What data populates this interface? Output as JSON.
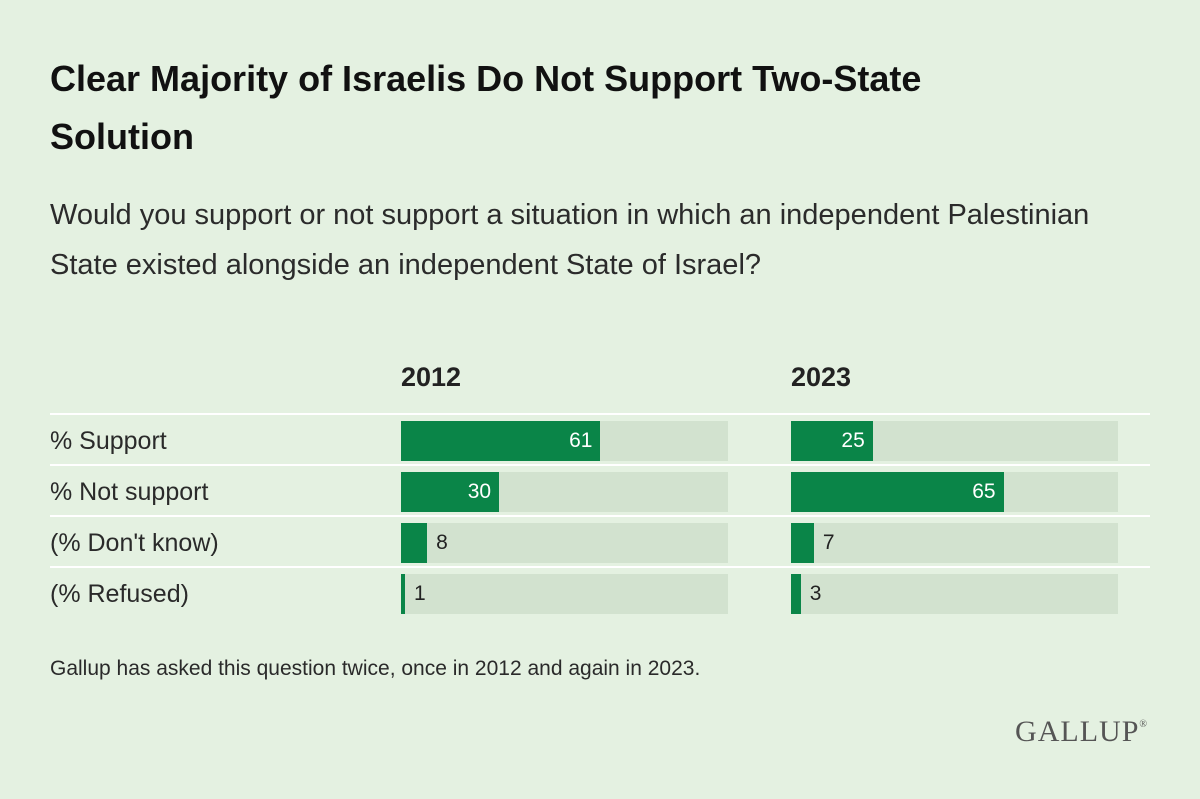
{
  "title": "Clear Majority of Israelis Do Not Support Two-State Solution",
  "subtitle": "Would you support or not support a situation in which an independent Palestinian State existed alongside an independent State of Israel?",
  "footnote": "Gallup has asked this question twice, once in 2012 and again in 2023.",
  "logo": "GALLUP",
  "colors": {
    "bar": "#0a8548",
    "track": "#d2e2cf",
    "background": "#e4f1e1"
  },
  "chart_data": {
    "type": "bar",
    "orientation": "horizontal",
    "categories": [
      "% Support",
      "% Not support",
      "(% Don't know)",
      "(% Refused)"
    ],
    "series": [
      {
        "name": "2012",
        "values": [
          61,
          30,
          8,
          1
        ]
      },
      {
        "name": "2023",
        "values": [
          25,
          65,
          7,
          3
        ]
      }
    ],
    "xlim": [
      0,
      100
    ],
    "title": "Clear Majority of Israelis Do Not Support Two-State Solution",
    "grid": false,
    "legend": "none"
  }
}
